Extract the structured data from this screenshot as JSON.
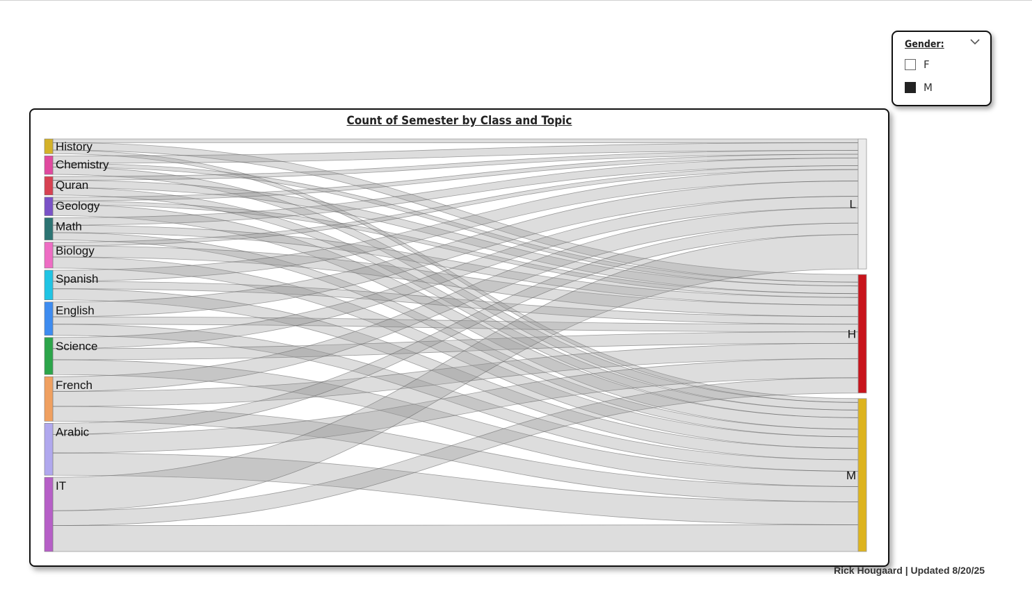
{
  "slicer": {
    "title": "Gender:",
    "options": [
      {
        "label": "F",
        "checked": false
      },
      {
        "label": "M",
        "checked": true
      }
    ]
  },
  "footer": "Rick Hougaard | Updated 8/20/25",
  "chart_data": {
    "type": "sankey",
    "title": "Count of Semester by Class and Topic",
    "sources": [
      {
        "name": "History",
        "color": "#D4B22A"
      },
      {
        "name": "Chemistry",
        "color": "#E0499F"
      },
      {
        "name": "Quran",
        "color": "#D74152"
      },
      {
        "name": "Geology",
        "color": "#7A52C7"
      },
      {
        "name": "Math",
        "color": "#2C7473"
      },
      {
        "name": "Biology",
        "color": "#EE6DC4"
      },
      {
        "name": "Spanish",
        "color": "#20C4E4"
      },
      {
        "name": "English",
        "color": "#3E8CF0"
      },
      {
        "name": "Science",
        "color": "#2CA54A"
      },
      {
        "name": "French",
        "color": "#F0A060"
      },
      {
        "name": "Arabic",
        "color": "#B0A8EE"
      },
      {
        "name": "IT",
        "color": "#B65FC7"
      }
    ],
    "targets": [
      {
        "name": "L",
        "color": "#EBEBEB"
      },
      {
        "name": "H",
        "color": "#C8141C"
      },
      {
        "name": "M",
        "color": "#DDB41E"
      }
    ],
    "links": [
      {
        "source": "History",
        "target": "L",
        "value": 1
      },
      {
        "source": "History",
        "target": "H",
        "value": 2
      },
      {
        "source": "History",
        "target": "M",
        "value": 1
      },
      {
        "source": "Chemistry",
        "target": "L",
        "value": 2
      },
      {
        "source": "Chemistry",
        "target": "H",
        "value": 1
      },
      {
        "source": "Chemistry",
        "target": "M",
        "value": 2
      },
      {
        "source": "Quran",
        "target": "L",
        "value": 1
      },
      {
        "source": "Quran",
        "target": "H",
        "value": 2
      },
      {
        "source": "Quran",
        "target": "M",
        "value": 2
      },
      {
        "source": "Geology",
        "target": "L",
        "value": 1
      },
      {
        "source": "Geology",
        "target": "H",
        "value": 1
      },
      {
        "source": "Geology",
        "target": "M",
        "value": 3
      },
      {
        "source": "Math",
        "target": "L",
        "value": 2
      },
      {
        "source": "Math",
        "target": "H",
        "value": 2
      },
      {
        "source": "Math",
        "target": "M",
        "value": 2
      },
      {
        "source": "Biology",
        "target": "L",
        "value": 1
      },
      {
        "source": "Biology",
        "target": "H",
        "value": 3
      },
      {
        "source": "Biology",
        "target": "M",
        "value": 3
      },
      {
        "source": "Spanish",
        "target": "L",
        "value": 3
      },
      {
        "source": "Spanish",
        "target": "H",
        "value": 2
      },
      {
        "source": "Spanish",
        "target": "M",
        "value": 3
      },
      {
        "source": "English",
        "target": "L",
        "value": 4
      },
      {
        "source": "English",
        "target": "H",
        "value": 2
      },
      {
        "source": "English",
        "target": "M",
        "value": 3
      },
      {
        "source": "Science",
        "target": "L",
        "value": 3
      },
      {
        "source": "Science",
        "target": "H",
        "value": 3
      },
      {
        "source": "Science",
        "target": "M",
        "value": 4
      },
      {
        "source": "French",
        "target": "L",
        "value": 4
      },
      {
        "source": "French",
        "target": "H",
        "value": 4
      },
      {
        "source": "French",
        "target": "M",
        "value": 4
      },
      {
        "source": "Arabic",
        "target": "L",
        "value": 3
      },
      {
        "source": "Arabic",
        "target": "H",
        "value": 5
      },
      {
        "source": "Arabic",
        "target": "M",
        "value": 6
      },
      {
        "source": "IT",
        "target": "L",
        "value": 9
      },
      {
        "source": "IT",
        "target": "H",
        "value": 4
      },
      {
        "source": "IT",
        "target": "M",
        "value": 7
      }
    ]
  }
}
